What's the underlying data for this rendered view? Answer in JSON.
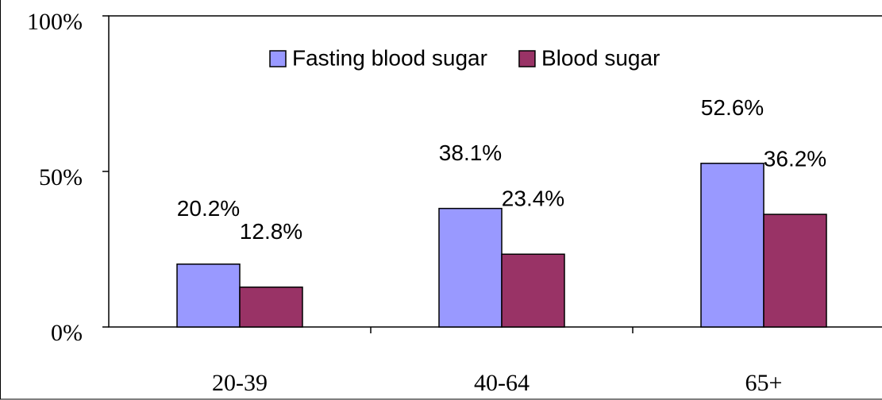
{
  "chart_data": {
    "type": "bar",
    "categories": [
      "20-39",
      "40-64",
      "65+"
    ],
    "series": [
      {
        "name": "Fasting blood sugar",
        "color": "#9999ff",
        "values": [
          20.2,
          38.1,
          52.6
        ],
        "value_labels": [
          "20.2%",
          "38.1%",
          "52.6%"
        ]
      },
      {
        "name": "Blood sugar",
        "color": "#993366",
        "values": [
          12.8,
          23.4,
          36.2
        ],
        "value_labels": [
          "12.8%",
          "23.4%",
          "36.2%"
        ]
      }
    ],
    "ylim": [
      0,
      100
    ],
    "yticks": [
      {
        "value": 0,
        "label": "0%"
      },
      {
        "value": 50,
        "label": "50%"
      },
      {
        "value": 100,
        "label": "100%"
      }
    ],
    "legend": "top"
  }
}
